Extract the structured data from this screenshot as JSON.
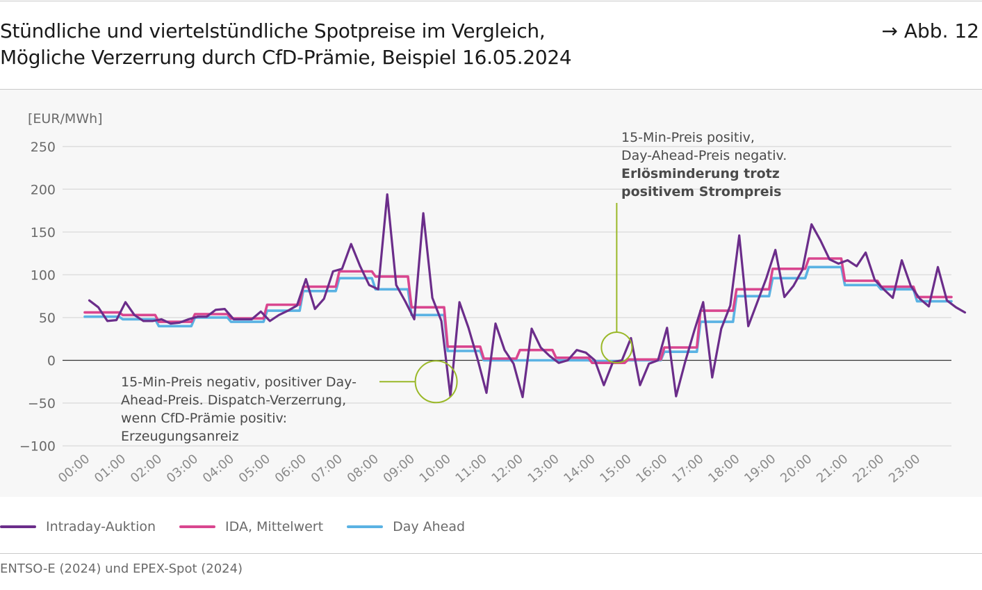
{
  "header": {
    "title_line1": "Stündliche und viertelstündliche Spotpreise im Vergleich,",
    "title_line2": "Mögliche Verzerrung durch CfD-Prämie, Beispiel 16.05.2024",
    "figure_ref": "→ Abb. 12"
  },
  "colors": {
    "intraday": "#6b2d8a",
    "ida_mean": "#d9468f",
    "day_ahead": "#5ab2e3",
    "annotation": "#9ab828",
    "grid": "#dedede",
    "zero_line": "#333333",
    "panel_bg": "#f7f7f7"
  },
  "annotations": {
    "left_line1": "15-Min-Preis negativ, positiver Day-",
    "left_line2": "Ahead-Preis. Dispatch-Verzerrung,",
    "left_line3": "wenn CfD-Prämie positiv:",
    "left_line4": "Erzeugungsanreiz",
    "right_line1": "15-Min-Preis positiv,",
    "right_line2": "Day-Ahead-Preis negativ.",
    "right_line3": "Erlösminderung trotz",
    "right_line4": "positivem Strompreis"
  },
  "legend": [
    {
      "label": "Intraday-Auktion",
      "color": "#6b2d8a"
    },
    {
      "label": "IDA, Mittelwert",
      "color": "#d9468f"
    },
    {
      "label": "Day Ahead",
      "color": "#5ab2e3"
    }
  ],
  "source": "ENTSO-E (2024) und EPEX-Spot (2024)",
  "chart_data": {
    "type": "line",
    "ylabel": "[EUR/MWh]",
    "ylim": [
      -100,
      250
    ],
    "yticks": [
      -100,
      -50,
      0,
      50,
      100,
      150,
      200,
      250
    ],
    "ytick_labels": [
      "−100",
      "−50",
      "0",
      "50",
      "100",
      "150",
      "200",
      "250"
    ],
    "xlim": [
      0,
      24
    ],
    "xticks": [
      "00:00",
      "01:00",
      "02:00",
      "03:00",
      "04:00",
      "05:00",
      "06:00",
      "07:00",
      "08:00",
      "09:00",
      "10:00",
      "11:00",
      "12:00",
      "13:00",
      "14:00",
      "15:00",
      "16:00",
      "17:00",
      "18:00",
      "19:00",
      "20:00",
      "21:00",
      "22:00",
      "23:00"
    ],
    "grid": true,
    "legend_position": "bottom-left",
    "series": [
      {
        "name": "Intraday-Auktion",
        "step": "quarter-hour",
        "values": [
          70,
          62,
          46,
          47,
          68,
          53,
          46,
          46,
          48,
          43,
          44,
          48,
          51,
          51,
          59,
          60,
          48,
          48,
          48,
          57,
          46,
          53,
          58,
          64,
          95,
          60,
          72,
          104,
          107,
          136,
          110,
          88,
          83,
          194,
          88,
          69,
          48,
          172,
          73,
          46,
          -42,
          68,
          38,
          2,
          -38,
          43,
          12,
          -4,
          -43,
          37,
          15,
          5,
          -3,
          0,
          12,
          9,
          0,
          -29,
          -2,
          0,
          26,
          -29,
          -4,
          0,
          38,
          -42,
          -2,
          34,
          68,
          -20,
          37,
          64,
          146,
          40,
          68,
          96,
          129,
          74,
          87,
          106,
          159,
          140,
          118,
          113,
          117,
          110,
          126,
          94,
          83,
          73,
          117,
          87,
          72,
          63,
          109,
          70,
          62,
          56
        ]
      },
      {
        "name": "IDA, Mittelwert",
        "step": "hour",
        "values": [
          56,
          53,
          45,
          54,
          49,
          65,
          86,
          104,
          98,
          62,
          16,
          2,
          12,
          3,
          -3,
          1,
          15,
          58,
          83,
          107,
          119,
          93,
          86,
          74
        ]
      },
      {
        "name": "Day Ahead",
        "step": "hour",
        "values": [
          51,
          48,
          40,
          50,
          45,
          58,
          81,
          96,
          83,
          53,
          11,
          0,
          0,
          0,
          -1,
          0,
          10,
          45,
          75,
          96,
          109,
          88,
          83,
          69
        ]
      }
    ],
    "annotation_points": [
      {
        "time": "09:45",
        "value": -25
      },
      {
        "time": "14:45",
        "value": 15
      }
    ]
  }
}
